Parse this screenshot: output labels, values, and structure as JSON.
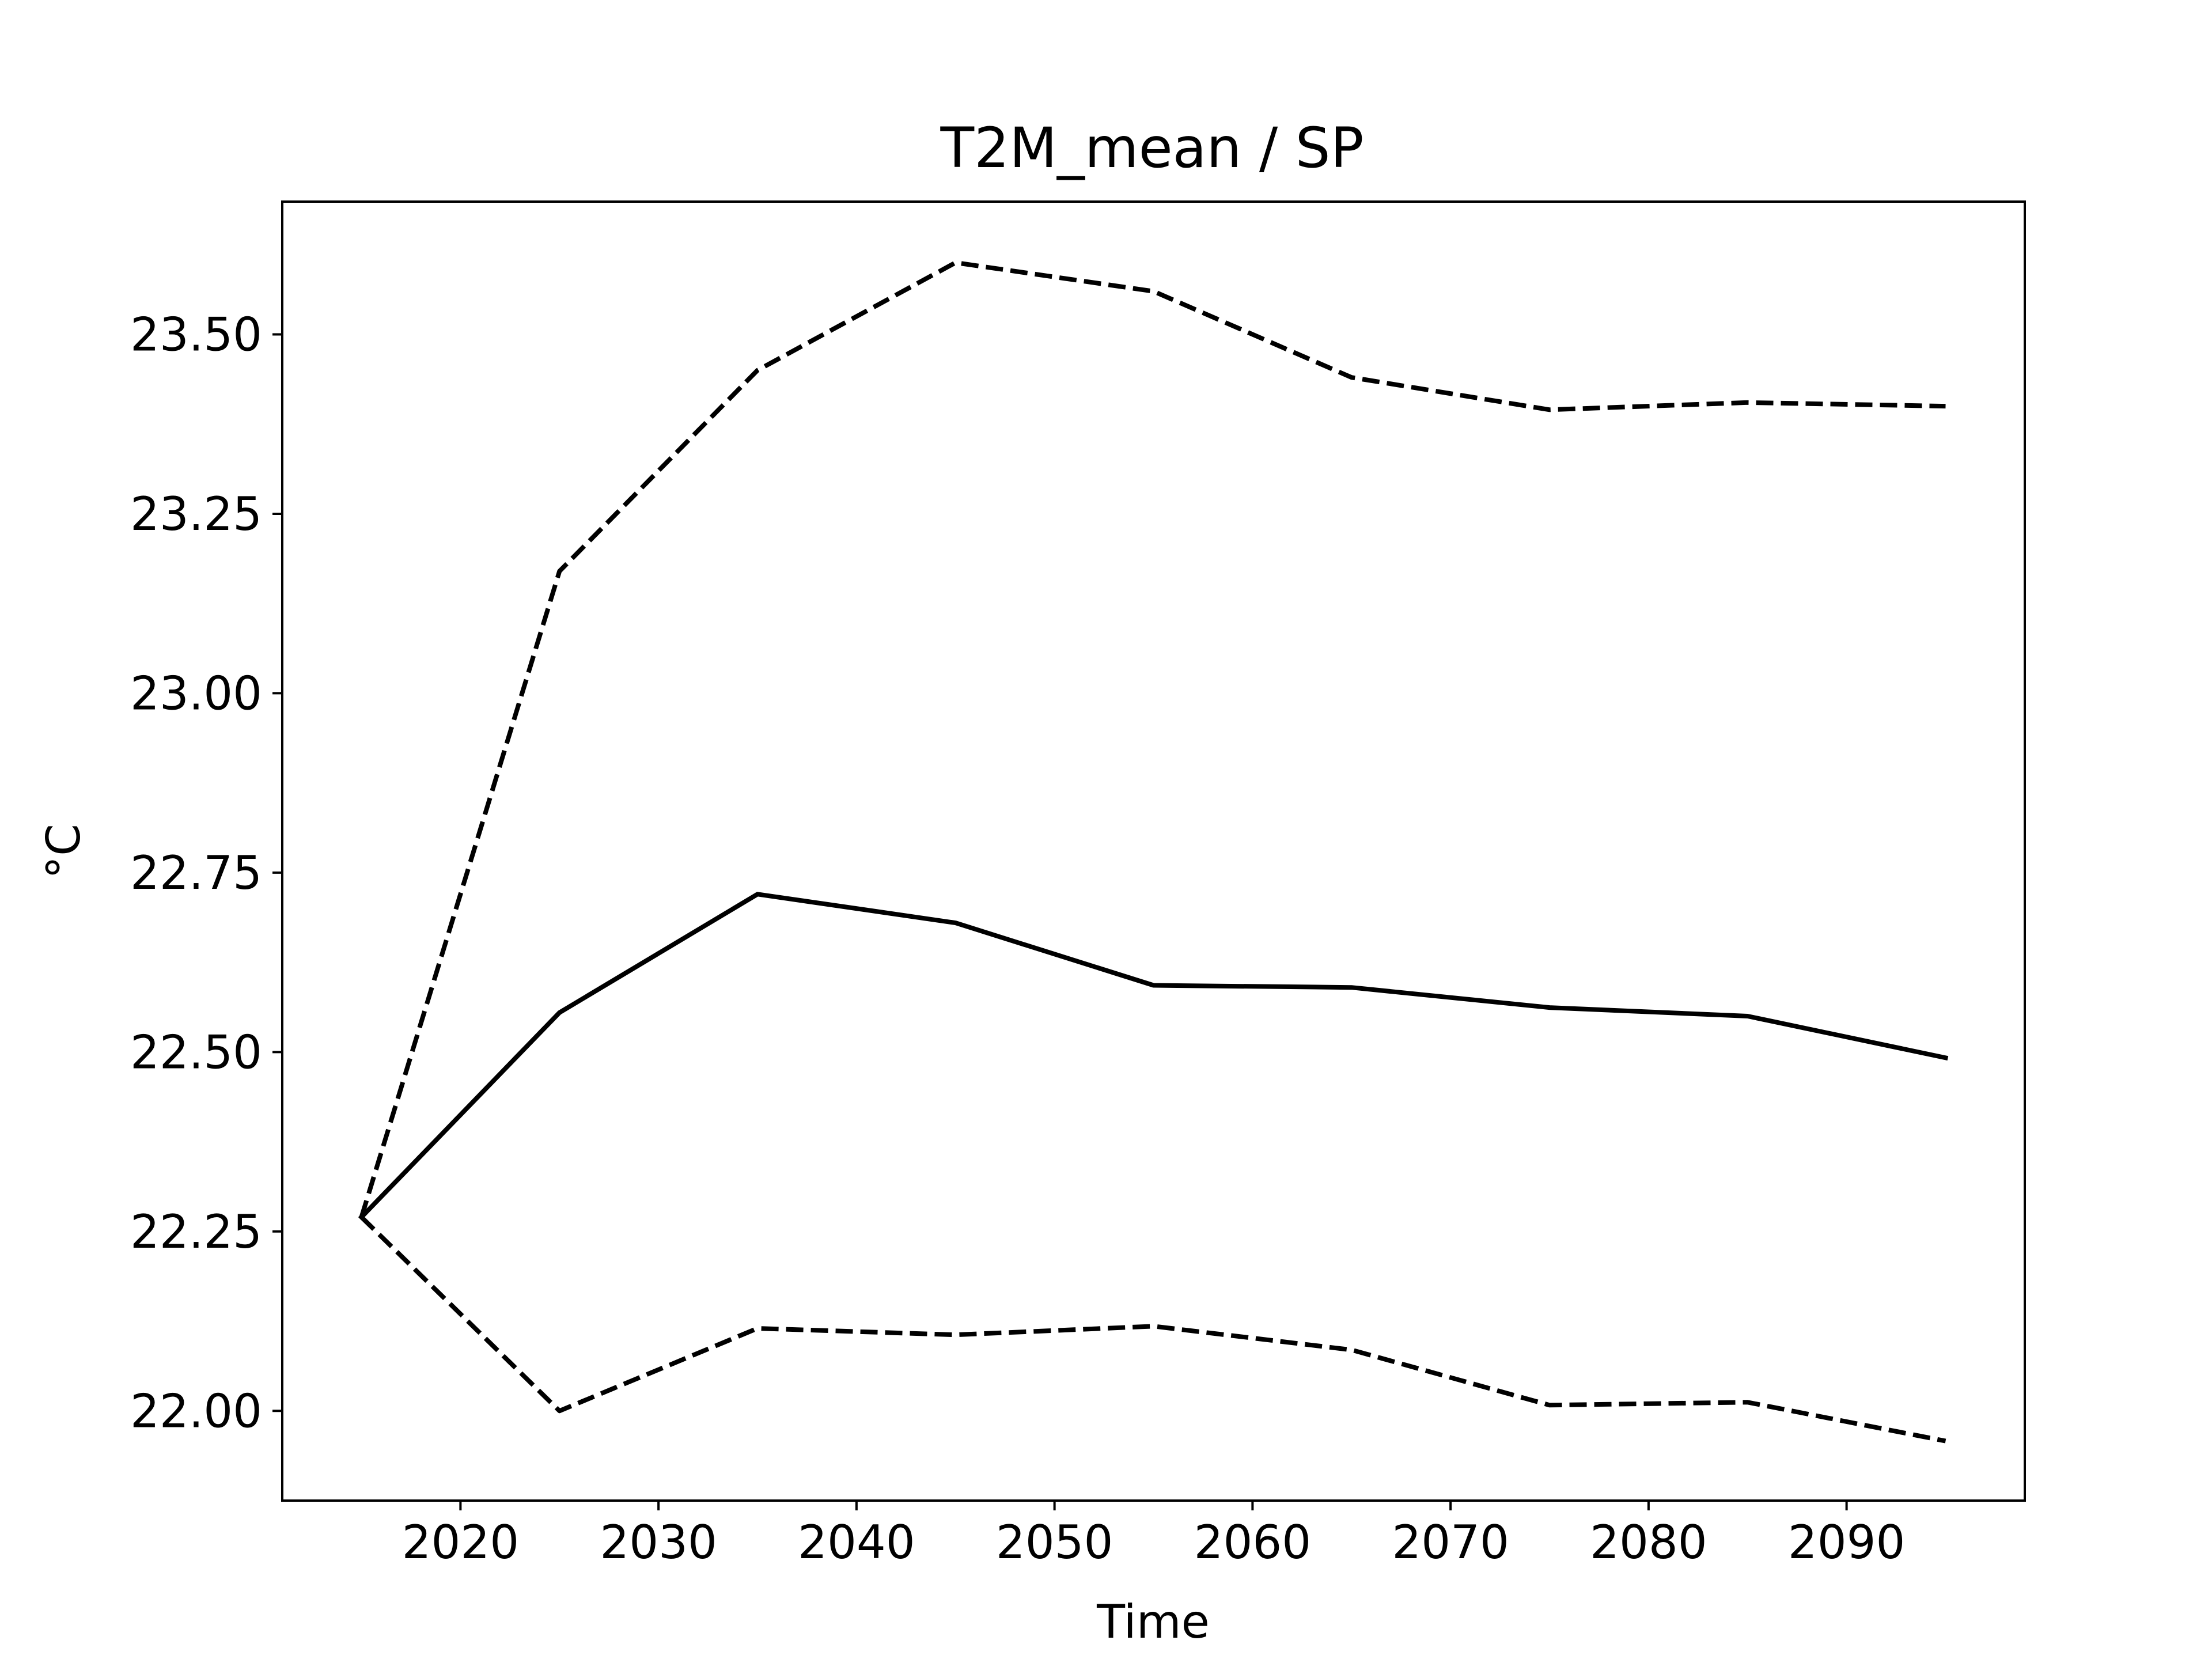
{
  "chart_data": {
    "type": "line",
    "title": "T2M_mean / SP",
    "xlabel": "Time",
    "ylabel": "°C",
    "xlim": [
      2011,
      2099
    ],
    "ylim": [
      21.875,
      23.685
    ],
    "xticks": [
      2020,
      2030,
      2040,
      2050,
      2060,
      2070,
      2080,
      2090
    ],
    "yticks": [
      22.0,
      22.25,
      22.5,
      22.75,
      23.0,
      23.25,
      23.5
    ],
    "ytick_labels": [
      "22.00",
      "22.25",
      "22.50",
      "22.75",
      "23.00",
      "23.25",
      "23.50"
    ],
    "grid": false,
    "x": [
      2015,
      2025,
      2035,
      2045,
      2055,
      2065,
      2075,
      2085,
      2095
    ],
    "series": [
      {
        "style": "solid",
        "color": "#000000",
        "values": [
          22.27,
          22.555,
          22.72,
          22.68,
          22.593,
          22.59,
          22.562,
          22.55,
          22.492
        ]
      },
      {
        "style": "dashed",
        "color": "#000000",
        "values": [
          22.27,
          23.17,
          23.45,
          23.6,
          23.56,
          23.44,
          23.395,
          23.405,
          23.4
        ]
      },
      {
        "style": "dashed",
        "color": "#000000",
        "values": [
          22.27,
          22.0,
          22.115,
          22.106,
          22.118,
          22.085,
          22.008,
          22.012,
          21.958
        ]
      }
    ]
  }
}
